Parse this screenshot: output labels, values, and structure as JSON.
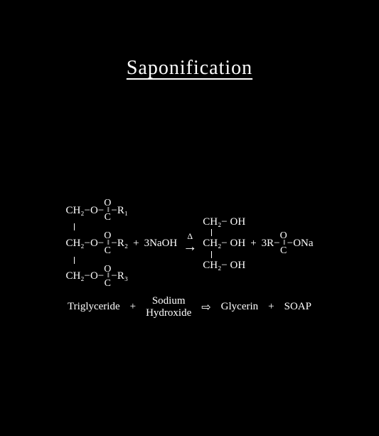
{
  "title": "Saponification",
  "colors": {
    "background": "#000000",
    "text": "#ffffff"
  },
  "triglyceride": {
    "rows": [
      {
        "backbone": "CH₂−O−",
        "r": "R₁"
      },
      {
        "backbone": "CH₂−O−",
        "r": "R₂"
      },
      {
        "backbone": "CH₂−O−",
        "r": "R₃"
      }
    ],
    "carbonyl_top": "O",
    "carbonyl_dbond": "‖",
    "carbonyl_c": "C",
    "dash": "−"
  },
  "reagent": {
    "coeff": "3",
    "formula": "NaOH"
  },
  "heat_symbol": "Δ",
  "arrow_symbol": "→",
  "glycerin": {
    "rows": [
      "CH₂− OH",
      "CH₂− OH",
      "CH₂− OH"
    ]
  },
  "soap": {
    "coeff": "3",
    "prefix": "R−",
    "carbonyl_top": "O",
    "carbonyl_dbond": "‖",
    "carbonyl_c": "C",
    "suffix": "−ONa"
  },
  "plus": "+",
  "word_equation": {
    "t1": "Triglyceride",
    "t2a": "Sodium",
    "t2b": "Hydroxide",
    "arrow": "⇨",
    "t3": "Glycerin",
    "t4": "SOAP"
  }
}
